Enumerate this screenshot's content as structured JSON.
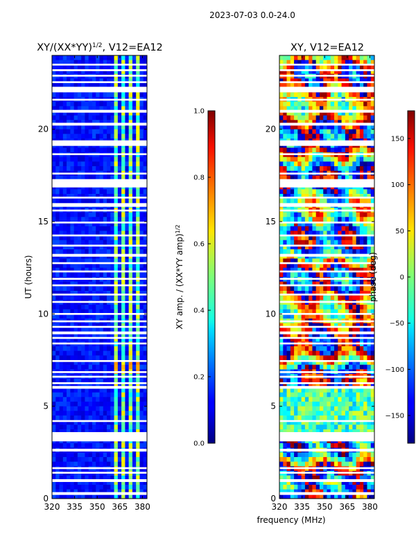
{
  "figure": {
    "suptitle": "2023-07-03 0.0-24.0",
    "xlabel_shared": "frequency (MHz)"
  },
  "chart_data": [
    {
      "type": "heatmap",
      "title_main": "XY/(XX*YY)",
      "title_exp": "1/2",
      "title_tail": ", V12=EA12",
      "xlabel": "frequency (MHz)",
      "ylabel": "UT (hours)",
      "xlim": [
        320,
        383
      ],
      "ylim": [
        0,
        24
      ],
      "xticks": [
        320,
        335,
        350,
        365,
        380
      ],
      "yticks": [
        0,
        5,
        10,
        15,
        20
      ],
      "colorbar": {
        "label_main": "XY amp. / (XX*YY amp)",
        "label_exp": "1/2",
        "range": [
          0.0,
          1.0
        ],
        "ticks": [
          "0.0",
          "0.2",
          "0.4",
          "0.6",
          "0.8",
          "1.0"
        ],
        "colormap": "jet"
      },
      "bright_channels_mhz": [
        [
          360,
          364
        ],
        [
          365,
          368
        ],
        [
          370,
          373
        ],
        [
          375,
          378
        ]
      ],
      "flagged_hours": [
        [
          0.2,
          0.35
        ],
        [
          0.9,
          1.05
        ],
        [
          1.35,
          1.45
        ],
        [
          1.6,
          1.7
        ],
        [
          2.55,
          2.7
        ],
        [
          3.1,
          3.6
        ],
        [
          4.15,
          4.25
        ],
        [
          5.95,
          6.1
        ],
        [
          6.2,
          6.3
        ],
        [
          6.55,
          6.65
        ],
        [
          6.8,
          6.9
        ],
        [
          7.4,
          7.5
        ],
        [
          8.35,
          8.45
        ],
        [
          8.65,
          8.75
        ],
        [
          8.9,
          9.05
        ],
        [
          9.25,
          9.35
        ],
        [
          9.55,
          9.65
        ],
        [
          9.95,
          10.05
        ],
        [
          10.6,
          10.7
        ],
        [
          11.0,
          11.1
        ],
        [
          11.5,
          11.6
        ],
        [
          11.85,
          11.95
        ],
        [
          12.25,
          12.35
        ],
        [
          12.7,
          12.8
        ],
        [
          13.1,
          13.25
        ],
        [
          13.65,
          13.75
        ],
        [
          14.2,
          14.3
        ],
        [
          14.9,
          15.0
        ],
        [
          15.55,
          15.65
        ],
        [
          15.8,
          16.0
        ],
        [
          16.25,
          16.35
        ],
        [
          16.85,
          17.3
        ],
        [
          17.55,
          17.65
        ],
        [
          18.6,
          18.7
        ],
        [
          19.1,
          19.4
        ],
        [
          20.2,
          20.35
        ],
        [
          20.9,
          21.05
        ],
        [
          21.55,
          21.65
        ],
        [
          22.0,
          22.3
        ],
        [
          22.5,
          22.6
        ],
        [
          22.85,
          22.95
        ],
        [
          23.15,
          23.25
        ],
        [
          23.45,
          23.55
        ]
      ]
    },
    {
      "type": "heatmap",
      "title": "XY, V12=EA12",
      "xlabel": "frequency (MHz)",
      "ylabel": "",
      "xlim": [
        320,
        383
      ],
      "ylim": [
        0,
        24
      ],
      "xticks": [
        320,
        335,
        350,
        365,
        380
      ],
      "yticks": [
        0,
        5,
        10,
        15,
        20
      ],
      "colorbar": {
        "label": "phase (deg)",
        "range": [
          -180,
          180
        ],
        "ticks": [
          "150",
          "100",
          "50",
          "0",
          "−50",
          "−100",
          "−150"
        ],
        "tick_values": [
          150,
          100,
          50,
          0,
          -50,
          -100,
          -150
        ],
        "colormap": "jet"
      },
      "flagged_hours": [
        [
          0.2,
          0.35
        ],
        [
          0.9,
          1.05
        ],
        [
          1.35,
          1.45
        ],
        [
          1.6,
          1.7
        ],
        [
          2.55,
          2.7
        ],
        [
          3.1,
          3.6
        ],
        [
          4.15,
          4.25
        ],
        [
          5.95,
          6.1
        ],
        [
          6.2,
          6.3
        ],
        [
          6.55,
          6.65
        ],
        [
          6.8,
          6.9
        ],
        [
          7.4,
          7.5
        ],
        [
          8.35,
          8.45
        ],
        [
          8.65,
          8.75
        ],
        [
          8.9,
          9.05
        ],
        [
          9.25,
          9.35
        ],
        [
          9.55,
          9.65
        ],
        [
          9.95,
          10.05
        ],
        [
          10.6,
          10.7
        ],
        [
          11.0,
          11.1
        ],
        [
          11.5,
          11.6
        ],
        [
          11.85,
          11.95
        ],
        [
          12.25,
          12.35
        ],
        [
          12.7,
          12.8
        ],
        [
          13.1,
          13.25
        ],
        [
          13.65,
          13.75
        ],
        [
          14.2,
          14.3
        ],
        [
          14.9,
          15.0
        ],
        [
          15.55,
          15.65
        ],
        [
          15.8,
          16.0
        ],
        [
          16.25,
          16.35
        ],
        [
          16.85,
          17.3
        ],
        [
          17.55,
          17.65
        ],
        [
          18.6,
          18.7
        ],
        [
          19.1,
          19.4
        ],
        [
          20.2,
          20.35
        ],
        [
          20.9,
          21.05
        ],
        [
          21.55,
          21.65
        ],
        [
          22.0,
          22.3
        ],
        [
          22.5,
          22.6
        ],
        [
          22.85,
          22.95
        ],
        [
          23.15,
          23.25
        ],
        [
          23.45,
          23.55
        ]
      ]
    }
  ]
}
